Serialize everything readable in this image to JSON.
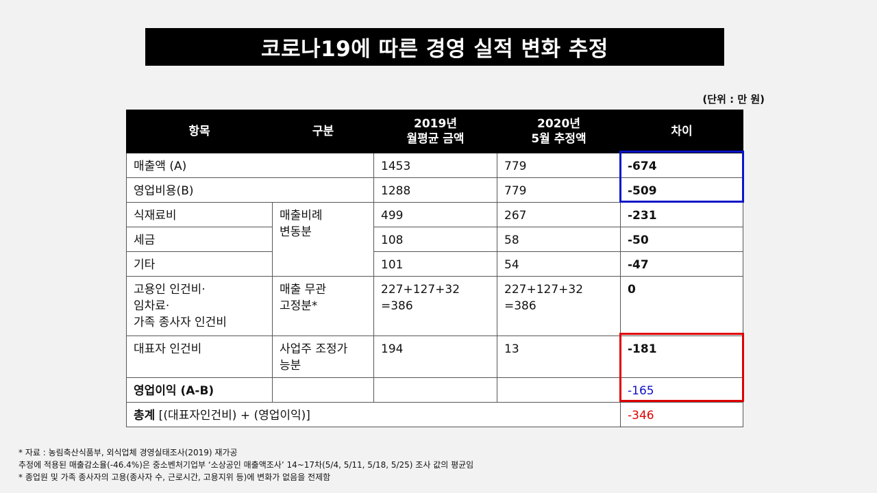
{
  "title": "코로나19에 따른 경영 실적 변화 추정",
  "unit": "(단위 : 만 원)",
  "table": {
    "headers": {
      "item": "항목",
      "category": "구분",
      "y2019_line1": "2019년",
      "y2019_line2": "월평균 금액",
      "y2020_line1": "2020년",
      "y2020_line2": "5월 추정액",
      "diff": "차이"
    },
    "rows": {
      "revenue": {
        "item": "매출액 (A)",
        "v2019": "1453",
        "v2020": "779",
        "diff": "-674"
      },
      "opex": {
        "item": "영업비용(B)",
        "v2019": "1288",
        "v2020": "779",
        "diff": "-509"
      },
      "food": {
        "item": "식재료비",
        "v2019": "499",
        "v2020": "267",
        "diff": "-231"
      },
      "tax": {
        "item": "세금",
        "v2019": "108",
        "v2020": "58",
        "diff": "-50"
      },
      "other": {
        "item": "기타",
        "v2019": "101",
        "v2020": "54",
        "diff": "-47"
      },
      "fixed": {
        "item_line1": "고용인 인건비·",
        "item_line2": "임차료·",
        "item_line3": "가족 종사자 인건비",
        "v2019_line1": "227+127+32",
        "v2019_line2": "=386",
        "v2020_line1": "227+127+32",
        "v2020_line2": "=386",
        "diff": "0"
      },
      "owner": {
        "item": "대표자 인건비",
        "v2019": "194",
        "v2020": "13",
        "diff": "-181"
      },
      "op_income": {
        "item": "영업이익 (A-B)",
        "diff": "-165"
      },
      "total": {
        "item_bold": "총계",
        "item_rest": " [(대표자인건비) + (영업이익)]",
        "diff": "-346"
      }
    },
    "groups": {
      "variable_line1": "매출비례",
      "variable_line2": "변동분",
      "fixed_line1": "매출 무관",
      "fixed_line2": "고정분*",
      "owner_line1": "사업주 조정가",
      "owner_line2": "능분"
    }
  },
  "notes": [
    "* 자료 : 농림축산식품부, 외식업체 경영실태조사(2019) 재가공",
    "추정에 적용된 매출감소율(-46.4%)은 중소벤처기업부 ‘소상공인 매출액조사’ 14~17차(5/4, 5/11, 5/18, 5/25) 조사 값의 평균임",
    "* 종업원 및 가족 종사자의 고용(종사자 수, 근로시간, 고용지위 등)에 변화가 없음을 전제함"
  ],
  "colors": {
    "highlight_blue": "#0a14c8",
    "highlight_red": "#e00000"
  }
}
